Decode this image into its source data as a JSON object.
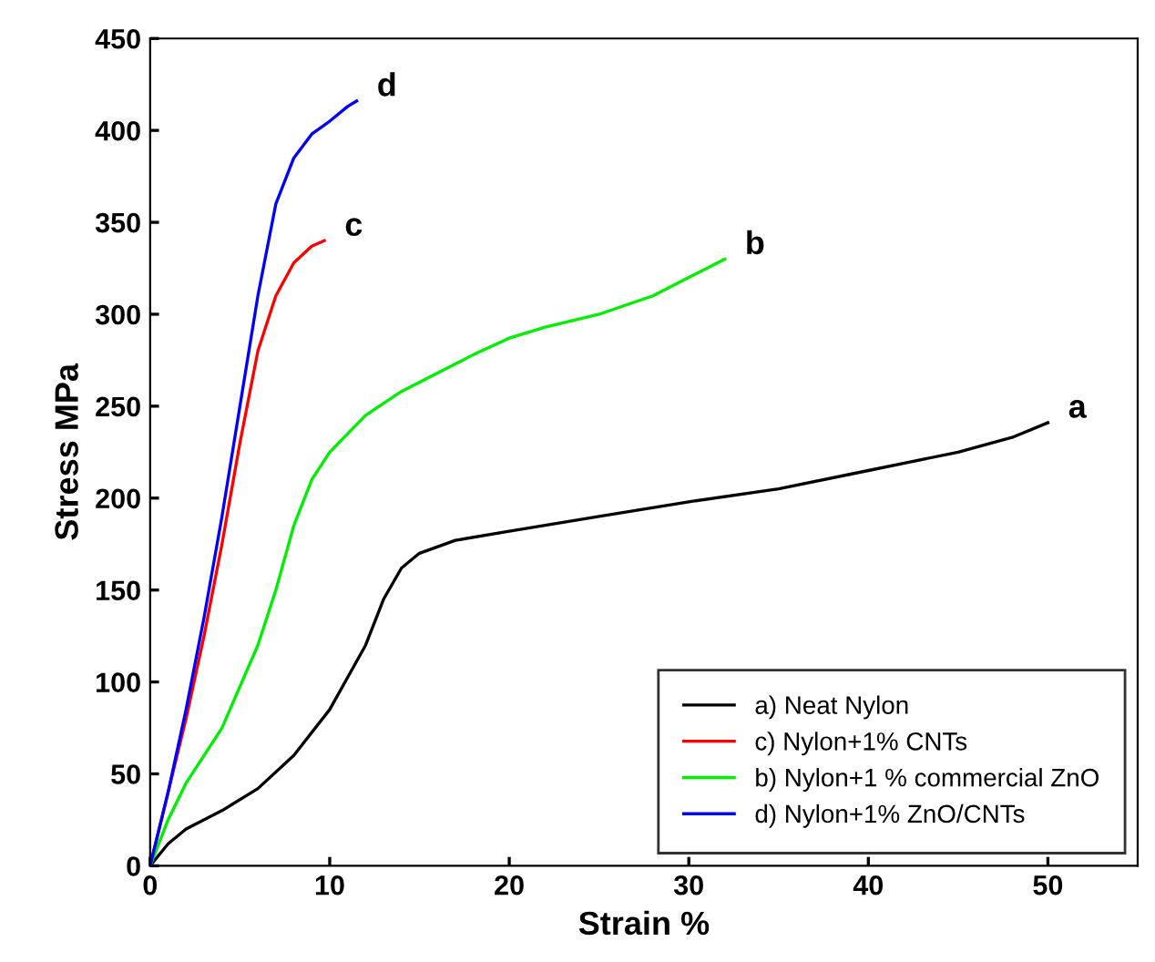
{
  "chart_data": {
    "type": "line",
    "xlabel": "Strain %",
    "ylabel": "Stress MPa",
    "xlim": [
      0,
      55
    ],
    "xticks": [
      0,
      10,
      20,
      30,
      40,
      50
    ],
    "ylim": [
      0,
      450
    ],
    "yticks": [
      0,
      50,
      100,
      150,
      200,
      250,
      300,
      350,
      400,
      450
    ],
    "grid": false,
    "legend": "bottom right",
    "marker": "none",
    "line_style": "solid",
    "series": [
      {
        "name": "a) Neat Nylon",
        "color": "#000000",
        "x": [
          0,
          1,
          2,
          4,
          6,
          8,
          10,
          12,
          13,
          14,
          15,
          17,
          20,
          25,
          30,
          35,
          40,
          45,
          48,
          50
        ],
        "values": [
          0,
          12,
          20,
          30,
          42,
          60,
          85,
          120,
          145,
          162,
          170,
          177,
          182,
          190,
          198,
          205,
          215,
          225,
          233,
          241
        ]
      },
      {
        "name": "c) Nylon+1% CNTs",
        "color": "#ff0000",
        "x": [
          0,
          2,
          3,
          4,
          5,
          6,
          7,
          8,
          9,
          9.7
        ],
        "values": [
          0,
          80,
          125,
          175,
          230,
          280,
          310,
          328,
          337,
          340
        ]
      },
      {
        "name": "b) Nylon+1 % commercial ZnO",
        "color": "#00ee00",
        "x": [
          0,
          1,
          2,
          4,
          6,
          7,
          8,
          9,
          10,
          12,
          14,
          16,
          18,
          20,
          22,
          25,
          28,
          30,
          32
        ],
        "values": [
          0,
          25,
          45,
          75,
          120,
          150,
          185,
          210,
          225,
          245,
          258,
          268,
          278,
          287,
          293,
          300,
          310,
          320,
          330
        ]
      },
      {
        "name": "d) Nylon+1% ZnO/CNTs",
        "color": "#0000ff",
        "x": [
          0,
          1,
          2,
          3,
          4,
          5,
          6,
          7,
          8,
          9,
          10,
          11,
          11.5
        ],
        "values": [
          0,
          40,
          85,
          135,
          190,
          250,
          310,
          360,
          385,
          398,
          405,
          413,
          416
        ]
      }
    ],
    "annotations": [
      {
        "text": "a",
        "x": 50,
        "y": 241
      },
      {
        "text": "c",
        "x": 9.7,
        "y": 340
      },
      {
        "text": "b",
        "x": 32,
        "y": 330
      },
      {
        "text": "d",
        "x": 11.5,
        "y": 416
      }
    ]
  }
}
